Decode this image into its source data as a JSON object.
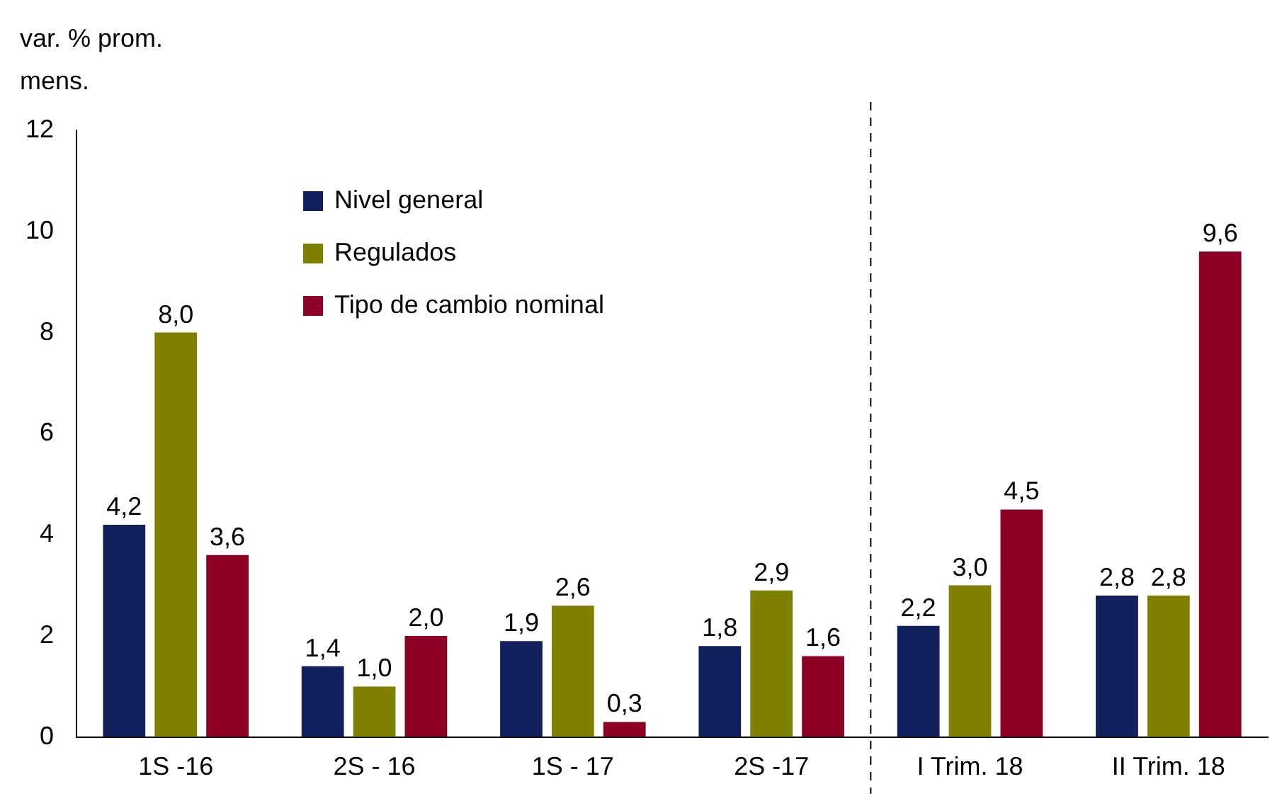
{
  "chart_data": {
    "type": "bar",
    "ylabel": "var. % prom. mens.",
    "categories": [
      "1S -16",
      "2S - 16",
      "1S - 17",
      "2S -17",
      "I Trim. 18",
      "II Trim. 18"
    ],
    "series": [
      {
        "name": "Nivel general",
        "color": "#12215e",
        "values": [
          4.2,
          1.4,
          1.9,
          1.8,
          2.2,
          2.8
        ],
        "value_labels": [
          "4,2",
          "1,4",
          "1,9",
          "1,8",
          "2,2",
          "2,8"
        ]
      },
      {
        "name": "Regulados",
        "color": "#7f8000",
        "values": [
          8.0,
          1.0,
          2.6,
          2.9,
          3.0,
          2.8
        ],
        "value_labels": [
          "8,0",
          "1,0",
          "2,6",
          "2,9",
          "3,0",
          "2,8"
        ]
      },
      {
        "name": "Tipo de cambio nominal",
        "color": "#8c0023",
        "values": [
          3.6,
          2.0,
          0.3,
          1.6,
          4.5,
          9.6
        ],
        "value_labels": [
          "3,6",
          "2,0",
          "0,3",
          "1,6",
          "4,5",
          "9,6"
        ]
      }
    ],
    "ylim": [
      0,
      12
    ],
    "yticks": [
      0,
      2,
      4,
      6,
      8,
      10,
      12
    ],
    "grid": false,
    "legend": "top left"
  }
}
